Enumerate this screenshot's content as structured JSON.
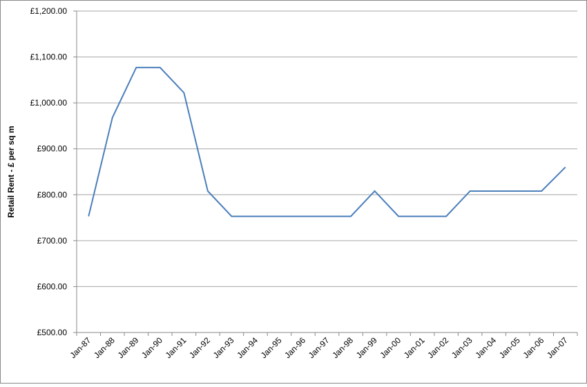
{
  "chart_data": {
    "type": "line",
    "y_label": "Retail Rent - £ per sq m",
    "categories": [
      "Jan-87",
      "Jan-88",
      "Jan-89",
      "Jan-90",
      "Jan-91",
      "Jan-92",
      "Jan-93",
      "Jan-94",
      "Jan-95",
      "Jan-96",
      "Jan-97",
      "Jan-98",
      "Jan-99",
      "Jan-00",
      "Jan-01",
      "Jan-02",
      "Jan-03",
      "Jan-04",
      "Jan-05",
      "Jan-06",
      "Jan-07"
    ],
    "series": [
      {
        "name": "Retail Rent",
        "color": "#4a7ebb",
        "values": [
          753,
          968,
          1077,
          1077,
          1022,
          808,
          753,
          753,
          753,
          753,
          753,
          753,
          808,
          753,
          753,
          753,
          808,
          808,
          808,
          808,
          860
        ]
      }
    ],
    "ylim": [
      500,
      1200
    ],
    "yticks": [
      {
        "value": 500,
        "label": "£500.00"
      },
      {
        "value": 600,
        "label": "£600.00"
      },
      {
        "value": 700,
        "label": "£700.00"
      },
      {
        "value": 800,
        "label": "£800.00"
      },
      {
        "value": 900,
        "label": "£900.00"
      },
      {
        "value": 1000,
        "label": "£1,000.00"
      },
      {
        "value": 1100,
        "label": "£1,100.00"
      },
      {
        "value": 1200,
        "label": "£1,200.00"
      }
    ],
    "grid": true
  }
}
